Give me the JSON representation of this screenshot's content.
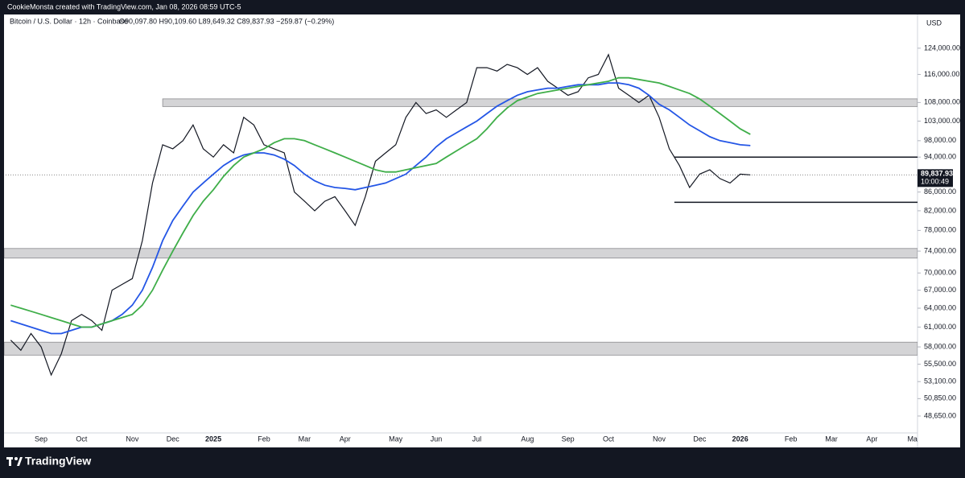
{
  "header": {
    "credit": "CookieMonsta created with TradingView.com, Jan 08, 2026 08:59 UTC-5",
    "brand": "TradingView"
  },
  "chart_data": {
    "type": "line",
    "symbol": "Bitcoin / U.S. Dollar · 12h · Coinbase",
    "ohlc": "O90,097.80 H90,109.60 L89,649.32 C89,837.93 −259.87 (−0.29%)",
    "currency": "USD",
    "log_scale": true,
    "categories": [
      null,
      null,
      null,
      "Sep",
      null,
      null,
      null,
      "Oct",
      null,
      null,
      null,
      null,
      "Nov",
      null,
      null,
      null,
      "Dec",
      null,
      null,
      null,
      "2025",
      null,
      null,
      null,
      null,
      "Feb",
      null,
      null,
      null,
      "Mar",
      null,
      null,
      null,
      "Apr",
      null,
      null,
      null,
      null,
      "May",
      null,
      null,
      null,
      "Jun",
      null,
      null,
      null,
      "Jul",
      null,
      null,
      null,
      null,
      "Aug",
      null,
      null,
      null,
      "Sep",
      null,
      null,
      null,
      "Oct",
      null,
      null,
      null,
      null,
      "Nov",
      null,
      null,
      null,
      "Dec",
      null,
      null,
      null,
      "2026",
      null,
      null,
      null,
      null,
      "Feb",
      null,
      null,
      null,
      "Mar",
      null,
      null,
      null,
      "Apr",
      null,
      null,
      null,
      "Ma"
    ],
    "series": [
      {
        "color": "#131722",
        "values": [
          59000,
          57500,
          60000,
          58000,
          54000,
          57000,
          62000,
          63000,
          62000,
          60500,
          67000,
          68000,
          69000,
          76000,
          88000,
          97000,
          96000,
          98000,
          102000,
          96000,
          94000,
          97000,
          95000,
          104000,
          102000,
          97000,
          96000,
          95000,
          86000,
          84000,
          82000,
          84000,
          85000,
          82000,
          79000,
          85000,
          93000,
          95000,
          97000,
          104000,
          108000,
          105000,
          106000,
          104000,
          106000,
          108000,
          118000,
          118000,
          117000,
          119000,
          118000,
          116000,
          118000,
          114000,
          112000,
          110000,
          111000,
          115000,
          116000,
          122000,
          112000,
          110000,
          108000,
          110000,
          104000,
          96000,
          92000,
          87000,
          90000,
          91000,
          89000,
          88000,
          90000,
          89837.93,
          null,
          null,
          null,
          null,
          null,
          null,
          null,
          null,
          null,
          null,
          null,
          null,
          null,
          null,
          null,
          null
        ]
      },
      {
        "color": "#2456e6",
        "values": [
          62000,
          61500,
          61000,
          60500,
          60000,
          60000,
          60500,
          61000,
          61000,
          61500,
          62000,
          63000,
          64500,
          67000,
          71000,
          76000,
          80000,
          83000,
          86000,
          88000,
          90000,
          92000,
          93500,
          94500,
          95000,
          95000,
          94500,
          93500,
          92000,
          90000,
          88500,
          87500,
          87000,
          86800,
          86500,
          87000,
          87500,
          88000,
          89000,
          90000,
          92000,
          94000,
          96500,
          98500,
          100000,
          101500,
          103000,
          105000,
          107000,
          108500,
          110000,
          111000,
          111500,
          112000,
          112000,
          112500,
          113000,
          113000,
          113000,
          113500,
          113500,
          113000,
          112000,
          110000,
          107500,
          106000,
          104000,
          102000,
          100500,
          99000,
          98000,
          97500,
          97000,
          96800,
          null,
          null,
          null,
          null,
          null,
          null,
          null,
          null,
          null,
          null,
          null,
          null,
          null,
          null,
          null,
          null
        ]
      },
      {
        "color": "#3fae49",
        "values": [
          64500,
          64000,
          63500,
          63000,
          62500,
          62000,
          61500,
          61000,
          61000,
          61500,
          62000,
          62500,
          63000,
          64500,
          67000,
          70500,
          74000,
          77500,
          81000,
          84000,
          86500,
          89500,
          92000,
          94000,
          95000,
          96000,
          97500,
          98500,
          98500,
          98000,
          97000,
          96000,
          95000,
          94000,
          93000,
          92000,
          91000,
          90500,
          90500,
          91000,
          91500,
          92000,
          92500,
          94000,
          95500,
          97000,
          98500,
          101000,
          104000,
          106500,
          108500,
          109500,
          110500,
          111000,
          111500,
          112000,
          112500,
          113000,
          113500,
          114000,
          115000,
          115000,
          114500,
          114000,
          113500,
          112500,
          111500,
          110500,
          109000,
          107000,
          105000,
          103000,
          101000,
          99600,
          null,
          null,
          null,
          null,
          null,
          null,
          null,
          null,
          null,
          null,
          null,
          null,
          null,
          null,
          null,
          null
        ]
      }
    ],
    "zones": [
      {
        "low": 106900,
        "high": 109000
      },
      {
        "low": 72700,
        "high": 74500
      },
      {
        "low": 56800,
        "high": 58700
      }
    ],
    "levels": [
      94000,
      83800
    ],
    "last_price": {
      "value": 89837.93,
      "label": "89,837.93"
    },
    "countdown": "10:00:49",
    "ylim": [
      46600,
      135100
    ],
    "yticks": [
      {
        "value": 124000,
        "label": "124,000.00"
      },
      {
        "value": 116000,
        "label": "116,000.00"
      },
      {
        "value": 108000,
        "label": "108,000.00"
      },
      {
        "value": 103000,
        "label": "103,000.00"
      },
      {
        "value": 98000,
        "label": "98,000.00"
      },
      {
        "value": 94000,
        "label": "94,000.00"
      },
      {
        "value": 86000,
        "label": "86,000.00"
      },
      {
        "value": 82000,
        "label": "82,000.00"
      },
      {
        "value": 78000,
        "label": "78,000.00"
      },
      {
        "value": 74000,
        "label": "74,000.00"
      },
      {
        "value": 70000,
        "label": "70,000.00"
      },
      {
        "value": 67000,
        "label": "67,000.00"
      },
      {
        "value": 64000,
        "label": "64,000.00"
      },
      {
        "value": 61000,
        "label": "61,000.00"
      },
      {
        "value": 58000,
        "label": "58,000.00"
      },
      {
        "value": 55500,
        "label": "55,500.00"
      },
      {
        "value": 53100,
        "label": "53,100.00"
      },
      {
        "value": 50850,
        "label": "50,850.00"
      },
      {
        "value": 48650,
        "label": "48,650.00"
      }
    ]
  }
}
